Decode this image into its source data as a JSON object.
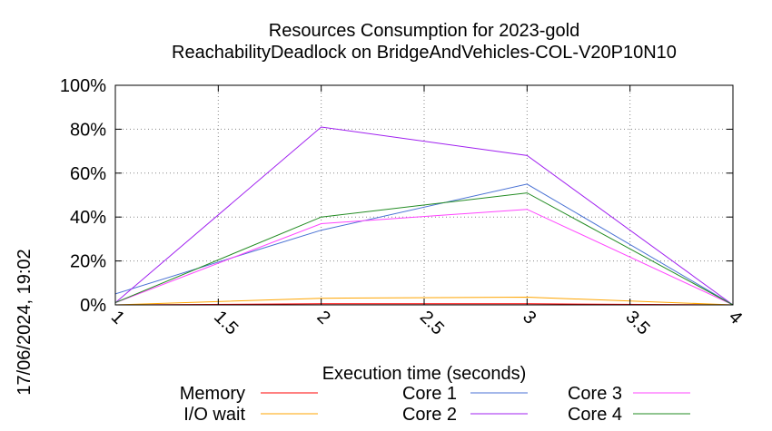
{
  "chart_data": {
    "type": "line",
    "title": "Resources Consumption for 2023-gold",
    "subtitle": "ReachabilityDeadlock on BridgeAndVehicles-COL-V20P10N10",
    "xlabel": "Execution time (seconds)",
    "ylabel": "",
    "side_label": "17/06/2024, 19:02",
    "xlim": [
      1,
      4
    ],
    "ylim": [
      0,
      100
    ],
    "x_ticks": [
      "1",
      "1.5",
      "2",
      "2.5",
      "3",
      "3.5",
      "4"
    ],
    "y_ticks": [
      "0%",
      "20%",
      "40%",
      "60%",
      "80%",
      "100%"
    ],
    "grid": true,
    "legend_position": "bottom",
    "x": [
      1,
      2,
      3,
      4
    ],
    "series": [
      {
        "name": "Memory",
        "color": "#ff0000",
        "values": [
          0.0,
          0.5,
          0.5,
          0.0
        ]
      },
      {
        "name": "I/O wait",
        "color": "#ffa500",
        "values": [
          0.0,
          3.0,
          3.5,
          0.0
        ]
      },
      {
        "name": "Core 1",
        "color": "#4a72d4",
        "values": [
          5.0,
          34.0,
          55.0,
          0.0
        ]
      },
      {
        "name": "Core 2",
        "color": "#a020f0",
        "values": [
          1.0,
          81.0,
          68.0,
          0.0
        ]
      },
      {
        "name": "Core 3",
        "color": "#ff44ff",
        "values": [
          1.0,
          37.0,
          43.5,
          0.0
        ]
      },
      {
        "name": "Core 4",
        "color": "#228b22",
        "values": [
          1.0,
          40.0,
          51.0,
          0.0
        ]
      }
    ]
  }
}
